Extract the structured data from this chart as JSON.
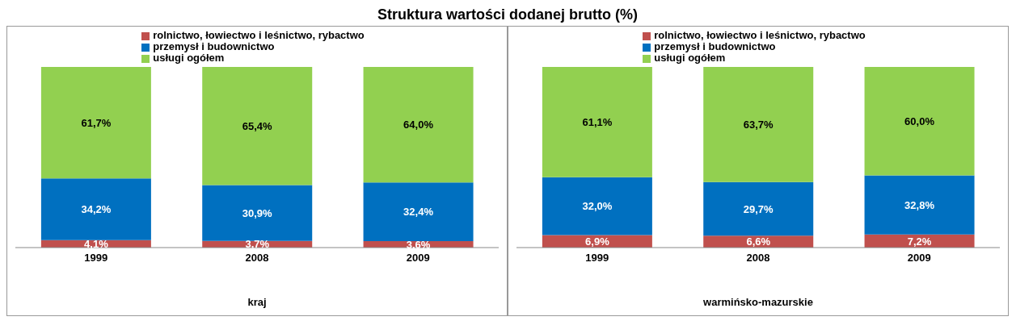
{
  "chart_data": [
    {
      "type": "bar",
      "title": "Struktura wartości dodanej brutto (%)",
      "xlabel": "kraj",
      "categories": [
        "1999",
        "2008",
        "2009"
      ],
      "stacked": true,
      "legend": "top",
      "grid": false,
      "series": [
        {
          "name": "rolnictwo, łowiectwo i leśnictwo, rybactwo",
          "color": "#c0504d",
          "values": [
            4.1,
            3.7,
            3.6
          ],
          "value_labels": [
            "4,1%",
            "3,7%",
            "3,6%"
          ]
        },
        {
          "name": "przemysł i budownictwo",
          "color": "#0070c0",
          "values": [
            34.2,
            30.9,
            32.4
          ],
          "value_labels": [
            "34,2%",
            "30,9%",
            "32,4%"
          ]
        },
        {
          "name": "usługi ogółem",
          "color": "#92d050",
          "values": [
            61.7,
            65.4,
            64.0
          ],
          "value_labels": [
            "61,7%",
            "65,4%",
            "64,0%"
          ]
        }
      ]
    },
    {
      "type": "bar",
      "xlabel": "warmińsko-mazurskie",
      "categories": [
        "1999",
        "2008",
        "2009"
      ],
      "stacked": true,
      "legend": "top",
      "grid": false,
      "series": [
        {
          "name": "rolnictwo, łowiectwo i leśnictwo, rybactwo",
          "color": "#c0504d",
          "values": [
            6.9,
            6.6,
            7.2
          ],
          "value_labels": [
            "6,9%",
            "6,6%",
            "7,2%"
          ]
        },
        {
          "name": "przemysł i budownictwo",
          "color": "#0070c0",
          "values": [
            32.0,
            29.7,
            32.8
          ],
          "value_labels": [
            "32,0%",
            "29,7%",
            "32,8%"
          ]
        },
        {
          "name": "usługi ogółem",
          "color": "#92d050",
          "values": [
            61.1,
            63.7,
            60.0
          ],
          "value_labels": [
            "61,1%",
            "63,7%",
            "60,0%"
          ]
        }
      ]
    }
  ]
}
